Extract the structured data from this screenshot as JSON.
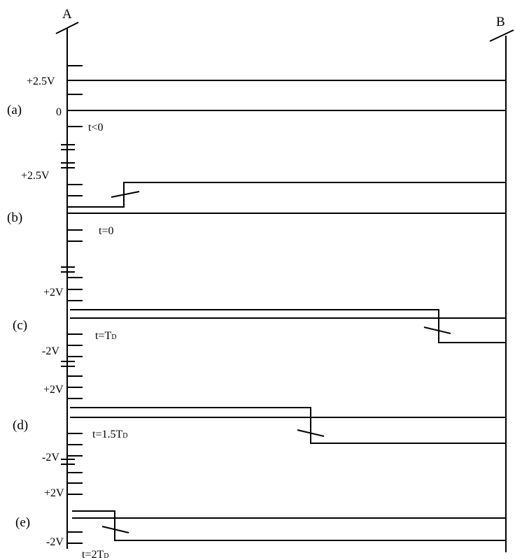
{
  "endpoints": {
    "a": "A",
    "b": "B"
  },
  "panels": [
    {
      "id": "a",
      "label": "(a)",
      "time": "t<0",
      "voltages": {
        "v1": "+2.5V",
        "v2": "0"
      }
    },
    {
      "id": "b",
      "label": "(b)",
      "time": "t=0",
      "voltages": {
        "v1": "+2.5V"
      }
    },
    {
      "id": "c",
      "label": "(c)",
      "time": {
        "main": "t=T",
        "sub": "D"
      },
      "voltages": {
        "v1": "+2V",
        "v2": "-2V"
      }
    },
    {
      "id": "d",
      "label": "(d)",
      "time": {
        "main": "t=1.5T",
        "sub": "D"
      },
      "voltages": {
        "v1": "+2V",
        "v2": "-2V"
      }
    },
    {
      "id": "e",
      "label": "(e)",
      "time": {
        "main": "t=2T",
        "sub": "D"
      },
      "voltages": {
        "v1": "+2V",
        "v2": "-2V"
      }
    }
  ]
}
